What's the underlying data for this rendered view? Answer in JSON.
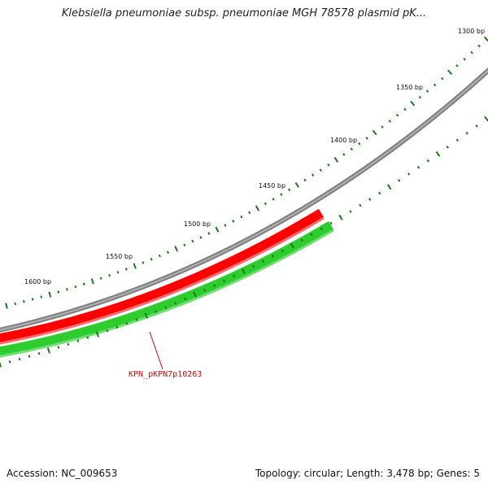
{
  "title": "Klebsiella pneumoniae subsp. pneumoniae MGH 78578 plasmid pK...",
  "scale_labels": [
    "1300 bp",
    "1350 bp",
    "1400 bp",
    "1450 bp",
    "1500 bp",
    "1550 bp",
    "1600 bp"
  ],
  "gene_label": "KPN_pKPN7p10263",
  "footer": {
    "accession": "Accession: NC_009653",
    "summary": "Topology: circular; Length: 3,478 bp; Genes: 5"
  },
  "colors": {
    "backbone": "#808080",
    "gene_forward": "#ff0000",
    "gene_reverse": "#22bb22",
    "ticks": "#1a7a1a",
    "label_line": "#e00000"
  }
}
